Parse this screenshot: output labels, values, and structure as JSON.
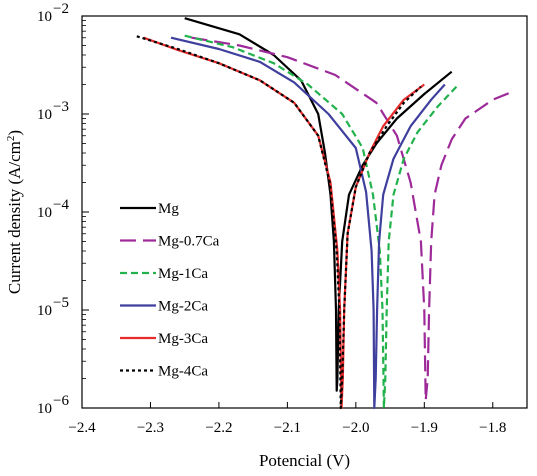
{
  "chart_data": {
    "type": "line",
    "xlabel": "Potencial (V)",
    "ylabel": "Current density (A/cm2)",
    "ylabel_unit_base": "Current density (A/cm",
    "ylabel_unit_sup": "2",
    "ylabel_unit_end": ")",
    "x_scale": "linear",
    "y_scale": "log",
    "xlim": [
      -2.4,
      -1.75
    ],
    "ylim": [
      1e-06,
      0.01
    ],
    "x_ticks": [
      -2.4,
      -2.3,
      -2.2,
      -2.1,
      -2.0,
      -1.9,
      -1.8
    ],
    "x_tick_labels": [
      "−2.4",
      "−2.3",
      "−2.2",
      "−2.1",
      "−2.0",
      "−1.9",
      "−1.8"
    ],
    "y_tick_exponents": [
      "−2",
      "−3",
      "−4",
      "−5",
      "−6"
    ],
    "y_tick_base": "10",
    "grid": false,
    "legend_position": "lower-left",
    "series": [
      {
        "name": "Mg",
        "color": "#000000",
        "dash": "solid",
        "points": [
          [
            -2.25,
            0.0095
          ],
          [
            -2.17,
            0.0065
          ],
          [
            -2.12,
            0.004
          ],
          [
            -2.08,
            0.0022
          ],
          [
            -2.055,
            0.001
          ],
          [
            -2.045,
            0.0004
          ],
          [
            -2.037,
            0.00015
          ],
          [
            -2.032,
            5e-05
          ],
          [
            -2.029,
            1e-05
          ],
          [
            -2.028,
            1.5e-06
          ],
          [
            -2.027,
            2e-06
          ],
          [
            -2.025,
            1e-05
          ],
          [
            -2.02,
            5e-05
          ],
          [
            -2.01,
            0.00015
          ],
          [
            -1.99,
            0.0003
          ],
          [
            -1.97,
            0.0005
          ],
          [
            -1.94,
            0.0009
          ],
          [
            -1.9,
            0.0016
          ],
          [
            -1.86,
            0.0027
          ]
        ]
      },
      {
        "name": "Mg-0.7Ca",
        "color": "#9e2a9a",
        "dash": "long",
        "points": [
          [
            -2.24,
            0.006
          ],
          [
            -2.17,
            0.005
          ],
          [
            -2.1,
            0.0038
          ],
          [
            -2.03,
            0.0025
          ],
          [
            -1.97,
            0.0013
          ],
          [
            -1.94,
            0.0006
          ],
          [
            -1.92,
            0.0002
          ],
          [
            -1.905,
            5e-05
          ],
          [
            -1.9,
            1e-05
          ],
          [
            -1.898,
            1.2e-06
          ],
          [
            -1.895,
            2e-06
          ],
          [
            -1.893,
            1e-05
          ],
          [
            -1.89,
            5e-05
          ],
          [
            -1.885,
            0.00015
          ],
          [
            -1.875,
            0.0003
          ],
          [
            -1.86,
            0.00055
          ],
          [
            -1.84,
            0.0009
          ],
          [
            -1.8,
            0.0014
          ],
          [
            -1.77,
            0.0017
          ]
        ]
      },
      {
        "name": "Mg-1Ca",
        "color": "#22b24c",
        "dash": "short",
        "points": [
          [
            -2.25,
            0.0063
          ],
          [
            -2.18,
            0.0048
          ],
          [
            -2.12,
            0.0033
          ],
          [
            -2.07,
            0.002
          ],
          [
            -2.02,
            0.001
          ],
          [
            -1.99,
            0.00045
          ],
          [
            -1.975,
            0.00015
          ],
          [
            -1.965,
            4e-05
          ],
          [
            -1.961,
            1e-05
          ],
          [
            -1.959,
            1e-06
          ],
          [
            -1.957,
            2e-06
          ],
          [
            -1.955,
            1e-05
          ],
          [
            -1.952,
            5e-05
          ],
          [
            -1.945,
            0.00015
          ],
          [
            -1.93,
            0.00035
          ],
          [
            -1.91,
            0.00065
          ],
          [
            -1.88,
            0.0012
          ],
          [
            -1.85,
            0.002
          ]
        ]
      },
      {
        "name": "Mg-2Ca",
        "color": "#3f3f9e",
        "dash": "solid",
        "points": [
          [
            -2.27,
            0.006
          ],
          [
            -2.2,
            0.0046
          ],
          [
            -2.14,
            0.0034
          ],
          [
            -2.09,
            0.0021
          ],
          [
            -2.04,
            0.001
          ],
          [
            -2.0,
            0.00045
          ],
          [
            -1.985,
            0.00016
          ],
          [
            -1.977,
            4e-05
          ],
          [
            -1.974,
            1e-05
          ],
          [
            -1.973,
            1e-06
          ],
          [
            -1.971,
            2e-06
          ],
          [
            -1.969,
            1e-05
          ],
          [
            -1.966,
            5e-05
          ],
          [
            -1.96,
            0.00015
          ],
          [
            -1.945,
            0.00035
          ],
          [
            -1.92,
            0.00075
          ],
          [
            -1.89,
            0.0014
          ],
          [
            -1.87,
            0.002
          ]
        ]
      },
      {
        "name": "Mg-3Ca",
        "color": "#e52b2b",
        "dash": "solid",
        "points": [
          [
            -2.31,
            0.006
          ],
          [
            -2.26,
            0.0045
          ],
          [
            -2.2,
            0.0033
          ],
          [
            -2.14,
            0.0022
          ],
          [
            -2.09,
            0.0013
          ],
          [
            -2.055,
            0.0006
          ],
          [
            -2.037,
            0.0002
          ],
          [
            -2.027,
            4e-05
          ],
          [
            -2.023,
            1e-05
          ],
          [
            -2.021,
            1e-06
          ],
          [
            -2.019,
            2e-06
          ],
          [
            -2.017,
            1e-05
          ],
          [
            -2.012,
            6e-05
          ],
          [
            -2.0,
            0.00018
          ],
          [
            -1.98,
            0.0004
          ],
          [
            -1.96,
            0.00075
          ],
          [
            -1.93,
            0.0014
          ],
          [
            -1.9,
            0.002
          ]
        ]
      },
      {
        "name": "Mg-4Ca",
        "color": "#000000",
        "dash": "dotted",
        "points": [
          [
            -2.32,
            0.0062
          ],
          [
            -2.26,
            0.0046
          ],
          [
            -2.2,
            0.0033
          ],
          [
            -2.14,
            0.0022
          ],
          [
            -2.09,
            0.0013
          ],
          [
            -2.055,
            0.0006
          ],
          [
            -2.038,
            0.0002
          ],
          [
            -2.028,
            4e-05
          ],
          [
            -2.024,
            1e-05
          ],
          [
            -2.022,
            1e-06
          ],
          [
            -2.02,
            2e-06
          ],
          [
            -2.017,
            1e-05
          ],
          [
            -2.012,
            6e-05
          ],
          [
            -2.0,
            0.00018
          ],
          [
            -1.98,
            0.0004
          ],
          [
            -1.955,
            0.00075
          ],
          [
            -1.93,
            0.0013
          ],
          [
            -1.905,
            0.0019
          ]
        ]
      }
    ]
  }
}
